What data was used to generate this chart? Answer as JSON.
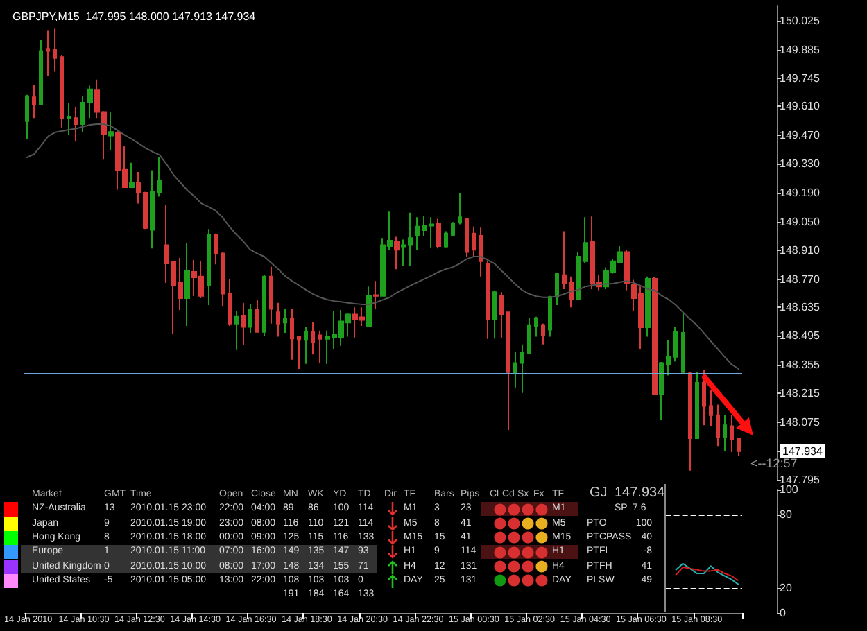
{
  "chart_data": [
    {
      "type": "candlestick",
      "title": "GBPJPY,M15  147.995 148.000 147.913 147.934",
      "categories": [
        null,
        null,
        null,
        null,
        null,
        null,
        null,
        null,
        null,
        null,
        null,
        null,
        null,
        null,
        null,
        null,
        null,
        null,
        null,
        null,
        null,
        null,
        null,
        null,
        null,
        null,
        null,
        null,
        null,
        null,
        null,
        null,
        null,
        null,
        null,
        null,
        null,
        null,
        null,
        null,
        null,
        null,
        null,
        null,
        null,
        null,
        null,
        null,
        null,
        null,
        null,
        null,
        null,
        null,
        null,
        null,
        null,
        null,
        null,
        null,
        null,
        null,
        null,
        null,
        null,
        null,
        null,
        null,
        null,
        null,
        null,
        null,
        null,
        null,
        null,
        null,
        null,
        null,
        null,
        null,
        null,
        null,
        null,
        null,
        null,
        null,
        null,
        null,
        null,
        null,
        null,
        null,
        null,
        null,
        null,
        null,
        null,
        null,
        null,
        null,
        null,
        null,
        null
      ],
      "ohlc": [
        [
          149.538,
          149.666,
          149.452,
          149.659
        ],
        [
          149.654,
          149.715,
          149.553,
          149.621
        ],
        [
          149.621,
          149.935,
          149.621,
          149.879
        ],
        [
          149.89,
          149.98,
          149.756,
          149.879
        ],
        [
          149.884,
          149.987,
          149.778,
          149.845
        ],
        [
          149.85,
          149.861,
          149.508,
          149.553
        ],
        [
          149.553,
          149.628,
          149.47,
          149.558
        ],
        [
          149.553,
          149.605,
          149.441,
          149.524
        ],
        [
          149.524,
          149.659,
          149.486,
          149.628
        ],
        [
          149.632,
          149.711,
          149.553,
          149.693
        ],
        [
          149.688,
          149.74,
          149.553,
          149.583
        ],
        [
          149.583,
          149.587,
          149.351,
          149.475
        ],
        [
          149.468,
          149.58,
          149.396,
          149.486
        ],
        [
          149.482,
          149.497,
          149.205,
          149.3
        ],
        [
          149.302,
          149.419,
          149.217,
          149.217
        ],
        [
          149.217,
          149.336,
          149.217,
          149.239
        ],
        [
          149.239,
          149.291,
          149.138,
          149.19
        ],
        [
          149.19,
          149.194,
          149.014,
          149.019
        ],
        [
          149.01,
          149.3,
          148.92,
          149.194
        ],
        [
          149.19,
          149.363,
          149.172,
          149.25
        ],
        [
          148.936,
          149.131,
          148.752,
          148.846
        ],
        [
          148.853,
          148.857,
          148.505,
          148.74
        ],
        [
          148.752,
          148.873,
          148.621,
          148.678
        ],
        [
          148.678,
          148.947,
          148.543,
          148.812
        ],
        [
          148.806,
          148.864,
          148.689,
          148.779
        ],
        [
          148.783,
          148.857,
          148.678,
          148.689
        ],
        [
          148.74,
          149.014,
          148.644,
          148.987
        ],
        [
          148.987,
          148.992,
          148.842,
          148.895
        ],
        [
          148.895,
          148.902,
          148.639,
          148.7
        ],
        [
          148.7,
          148.772,
          148.543,
          148.554
        ],
        [
          148.554,
          148.617,
          148.426,
          148.588
        ],
        [
          148.594,
          148.655,
          148.449,
          148.538
        ],
        [
          148.538,
          148.648,
          148.509,
          148.621
        ],
        [
          148.621,
          148.671,
          148.514,
          148.514
        ],
        [
          148.514,
          148.79,
          148.493,
          148.783
        ],
        [
          148.783,
          148.83,
          148.554,
          148.626
        ],
        [
          148.61,
          148.655,
          148.491,
          148.554
        ],
        [
          148.559,
          148.626,
          148.509,
          148.577
        ],
        [
          148.577,
          148.626,
          148.379,
          148.482
        ],
        [
          148.491,
          148.491,
          148.334,
          148.475
        ],
        [
          148.475,
          148.538,
          148.359,
          148.516
        ],
        [
          148.514,
          148.561,
          148.404,
          148.464
        ],
        [
          148.498,
          148.52,
          148.363,
          148.48
        ],
        [
          148.48,
          148.52,
          148.359,
          148.491
        ],
        [
          148.487,
          148.617,
          148.431,
          148.502
        ],
        [
          148.487,
          148.621,
          148.446,
          148.565
        ],
        [
          148.559,
          148.606,
          148.491,
          148.599
        ],
        [
          148.599,
          148.633,
          148.487,
          148.577
        ],
        [
          148.585,
          148.633,
          148.543,
          148.572
        ],
        [
          148.543,
          148.734,
          148.543,
          148.689
        ],
        [
          148.693,
          148.761,
          148.626,
          148.689
        ],
        [
          148.689,
          148.97,
          148.689,
          148.936
        ],
        [
          148.931,
          149.098,
          148.913,
          148.958
        ],
        [
          148.952,
          148.976,
          148.819,
          148.913
        ],
        [
          148.929,
          148.963,
          148.835,
          148.936
        ],
        [
          148.936,
          149.093,
          148.835,
          148.97
        ],
        [
          148.981,
          149.071,
          148.913,
          149.026
        ],
        [
          149.008,
          149.077,
          148.981,
          149.032
        ],
        [
          149.03,
          149.071,
          148.925,
          149.037
        ],
        [
          149.041,
          149.064,
          148.92,
          148.931
        ],
        [
          148.929,
          149.003,
          148.925,
          148.992
        ],
        [
          148.985,
          149.048,
          148.981,
          149.041
        ],
        [
          149.044,
          149.187,
          149.037,
          149.071
        ],
        [
          149.064,
          149.066,
          148.88,
          148.902
        ],
        [
          148.992,
          149.026,
          148.88,
          148.913
        ],
        [
          148.981,
          149.021,
          148.783,
          148.857
        ],
        [
          148.846,
          148.857,
          148.48,
          148.577
        ],
        [
          148.577,
          148.716,
          148.482,
          148.707
        ],
        [
          148.689,
          148.707,
          148.487,
          148.599
        ],
        [
          148.61,
          148.61,
          148.038,
          148.318
        ],
        [
          148.312,
          148.415,
          148.244,
          148.363
        ],
        [
          148.363,
          148.453,
          148.217,
          148.415
        ],
        [
          148.408,
          148.581,
          148.408,
          148.547
        ],
        [
          148.543,
          148.588,
          148.491,
          148.581
        ],
        [
          148.547,
          148.554,
          148.453,
          148.498
        ],
        [
          148.525,
          148.689,
          148.491,
          148.684
        ],
        [
          148.684,
          148.801,
          148.644,
          148.797
        ],
        [
          148.79,
          149.003,
          148.722,
          148.752
        ],
        [
          148.752,
          148.783,
          148.633,
          148.671
        ],
        [
          148.671,
          148.902,
          148.671,
          148.88
        ],
        [
          148.857,
          149.071,
          148.846,
          148.947
        ],
        [
          148.954,
          149.075,
          148.722,
          148.752
        ],
        [
          148.752,
          148.79,
          148.716,
          148.734
        ],
        [
          148.734,
          148.828,
          148.722,
          148.812
        ],
        [
          148.806,
          148.868,
          148.797,
          148.857
        ],
        [
          148.85,
          148.931,
          148.846,
          148.902
        ],
        [
          148.902,
          148.913,
          148.716,
          148.752
        ],
        [
          148.745,
          148.767,
          148.617,
          148.678
        ],
        [
          148.7,
          148.734,
          148.431,
          148.536
        ],
        [
          148.536,
          148.783,
          148.491,
          148.772
        ],
        [
          148.772,
          148.779,
          148.206,
          148.21
        ],
        [
          148.21,
          148.368,
          148.087,
          148.363
        ],
        [
          148.356,
          148.475,
          148.302,
          148.392
        ],
        [
          148.392,
          148.536,
          148.37,
          148.514
        ],
        [
          148.318,
          148.61,
          148.307,
          148.509
        ],
        [
          148.312,
          148.318,
          147.84,
          147.997
        ],
        [
          147.997,
          148.318,
          147.997,
          148.267
        ],
        [
          148.267,
          148.329,
          148.06,
          148.154
        ],
        [
          148.154,
          148.233,
          148.056,
          148.109
        ],
        [
          148.109,
          148.161,
          147.959,
          148.004
        ],
        [
          148.004,
          148.109,
          147.936,
          148.06
        ],
        [
          148.056,
          148.109,
          147.93,
          147.993
        ],
        [
          147.995,
          148.0,
          147.913,
          147.934
        ]
      ],
      "series": [
        {
          "type": "line",
          "color": "#555555",
          "values": [
            149.362,
            149.378,
            149.419,
            149.464,
            149.484,
            149.49,
            149.497,
            149.502,
            149.511,
            149.52,
            149.524,
            149.524,
            149.515,
            149.493,
            149.47,
            149.452,
            149.43,
            149.407,
            149.389,
            149.374,
            149.329,
            149.277,
            149.239,
            149.201,
            149.172,
            149.138,
            149.122,
            149.104,
            149.071,
            149.026,
            148.987,
            148.954,
            148.913,
            148.895,
            148.88,
            148.85,
            148.819,
            148.785,
            148.761,
            148.74,
            148.718,
            148.698,
            148.682,
            148.671,
            148.664,
            148.66,
            148.655,
            148.651,
            148.648,
            148.648,
            148.657,
            148.67,
            148.682,
            148.705,
            148.722,
            148.74,
            148.756,
            148.772,
            148.788,
            148.806,
            148.819,
            148.828,
            148.846,
            148.868,
            148.88,
            148.88,
            148.864,
            148.846,
            148.812,
            148.779,
            148.745,
            148.716,
            148.698,
            148.687,
            148.682,
            148.682,
            148.687,
            148.698,
            148.711,
            148.718,
            148.734,
            148.74,
            148.745,
            148.747,
            148.749,
            148.756,
            148.761,
            148.752,
            148.738,
            148.722,
            148.716,
            148.689,
            148.671,
            148.644,
            148.61,
            148.577,
            148.547,
            148.509,
            148.469,
            148.431,
            148.392,
            148.356,
            148.334
          ]
        }
      ],
      "ylim": [
        147.795,
        150.1
      ],
      "yticks": [
        147.795,
        147.934,
        148.075,
        148.215,
        148.355,
        148.495,
        148.635,
        {
          "value": 148.77,
          "label": "148.770"
        },
        {
          "value": 148.91,
          "label": "148.910"
        },
        {
          "value": 149.05,
          "label": "149.050"
        },
        {
          "value": 149.19,
          "label": "149.190"
        },
        {
          "value": 149.33,
          "label": "149.330"
        },
        {
          "value": 149.47,
          "label": "149.470"
        },
        {
          "value": 149.61,
          "label": "149.610"
        },
        149.745,
        149.885,
        150.025
      ],
      "ref_lines": [
        {
          "axis": "y",
          "value": 148.31,
          "color": "#6fa8dc"
        }
      ],
      "annotations": [
        "<--12:57"
      ],
      "tick_labels": "y",
      "marker": "none"
    },
    {
      "type": "line",
      "categories": [
        "14 Jan 2010",
        null,
        null,
        null,
        null,
        null,
        null,
        null,
        "14 Jan 10:30",
        null,
        null,
        null,
        null,
        null,
        null,
        null,
        "14 Jan 12:30",
        null,
        null,
        null,
        null,
        null,
        null,
        null,
        "14 Jan 14:30",
        null,
        null,
        null,
        null,
        null,
        null,
        null,
        "14 Jan 16:30",
        null,
        null,
        null,
        null,
        null,
        null,
        null,
        "14 Jan 18:30",
        null,
        null,
        null,
        null,
        null,
        null,
        null,
        "14 Jan 20:30",
        null,
        null,
        null,
        null,
        null,
        null,
        null,
        "14 Jan 22:30",
        null,
        null,
        null,
        null,
        null,
        null,
        null,
        "15 Jan 00:30",
        null,
        null,
        null,
        null,
        null,
        null,
        null,
        "15 Jan 02:30",
        null,
        null,
        null,
        null,
        null,
        null,
        null,
        "15 Jan 04:30",
        null,
        null,
        null,
        null,
        null,
        null,
        null,
        "15 Jan 06:30",
        null,
        null,
        null,
        null,
        null,
        null,
        null,
        "15 Jan 08:30",
        null,
        null,
        null,
        null,
        null,
        null
      ],
      "series": [
        {
          "color": "#2ab0b0",
          "line_style": "solid",
          "values": [
            null,
            null,
            null,
            null,
            null,
            null,
            null,
            null,
            null,
            null,
            null,
            null,
            null,
            null,
            null,
            null,
            null,
            null,
            null,
            null,
            null,
            null,
            null,
            null,
            null,
            null,
            null,
            null,
            null,
            null,
            null,
            null,
            null,
            null,
            null,
            null,
            null,
            null,
            null,
            null,
            null,
            null,
            null,
            null,
            null,
            null,
            null,
            null,
            null,
            null,
            null,
            null,
            null,
            null,
            null,
            null,
            null,
            null,
            null,
            null,
            null,
            null,
            null,
            null,
            null,
            null,
            null,
            null,
            null,
            null,
            null,
            null,
            null,
            null,
            null,
            null,
            null,
            null,
            null,
            null,
            null,
            null,
            null,
            null,
            null,
            null,
            null,
            null,
            null,
            null,
            null,
            null,
            null,
            35,
            40,
            36,
            32,
            32,
            38,
            33,
            30,
            27,
            23
          ]
        },
        {
          "color": "#e02020",
          "line_style": "dotted",
          "values": [
            null,
            null,
            null,
            null,
            null,
            null,
            null,
            null,
            null,
            null,
            null,
            null,
            null,
            null,
            null,
            null,
            null,
            null,
            null,
            null,
            null,
            null,
            null,
            null,
            null,
            null,
            null,
            null,
            null,
            null,
            null,
            null,
            null,
            null,
            null,
            null,
            null,
            null,
            null,
            null,
            null,
            null,
            null,
            null,
            null,
            null,
            null,
            null,
            null,
            null,
            null,
            null,
            null,
            null,
            null,
            null,
            null,
            null,
            null,
            null,
            null,
            null,
            null,
            null,
            null,
            null,
            null,
            null,
            null,
            null,
            null,
            null,
            null,
            null,
            null,
            null,
            null,
            null,
            null,
            null,
            null,
            null,
            null,
            null,
            null,
            null,
            null,
            null,
            null,
            null,
            null,
            null,
            null,
            31,
            37,
            36,
            35,
            34,
            34,
            35,
            32,
            30,
            26
          ]
        }
      ],
      "ylim": [
        0,
        100
      ],
      "yticks": [
        0,
        20,
        80,
        100
      ],
      "ref_lines": [
        {
          "axis": "y",
          "value": 80,
          "color": "#ffffff",
          "line_style": "dashed"
        },
        {
          "axis": "y",
          "value": 20,
          "color": "#ffffff",
          "line_style": "dashed"
        }
      ],
      "marker": "none"
    },
    {
      "type": "other",
      "colors": [
        "#ff0000",
        "#ffff00",
        "#00ff00",
        "#3399ff",
        "#9933ff",
        "#ff88ff"
      ],
      "annotations": [
        "Market\tGMT\tTime\tOpen\tClose\tMN\tWK\tYD\tTD\tDir\tTF\tBars\tPips\tCl\tCd\tSx\tFx\tTF",
        "NZ-Australia\t13\t2010.01.15 23:00\t22:00\t04:00\t89\t86\t100\t114\t\tM1\t3\t23\t\t\t\t\tM1",
        "Japan\t9\t2010.01.15 19:00\t23:00\t08:00\t116\t110\t121\t114\t\tM5\t8\t41\t\t\t\t\tM5",
        "Hong Kong\t8\t2010.01.15 18:00\t00:00\t09:00\t125\t115\t116\t133\t\tM15\t15\t41\t\t\t\t\tM15",
        "Europe\t1\t2010.01.15 11:00\t07:00\t16:00\t149\t135\t147\t93\t\tH1\t9\t114\t\t\t\t\tH1",
        "United Kingdom\t0\t2010.01.15 10:00\t08:00\t17:00\t148\t134\t155\t71\t\tH4\t12\t131\t\t\t\t\tH4",
        "United States\t-5\t2010.01.15 05:00\t13:00\t22:00\t108\t103\t103\t0\t\tDAY\t25\t131\t\t\t\t\tDAY",
        "\t\t\t\t\t191\t184\t164\t133",
        "GJ\t147.934",
        "SP\t7.6",
        "PTO\t100",
        "PTCPASS\t40",
        "PTFL\t-8",
        "PTFH\t41",
        "PLSW\t49"
      ]
    }
  ]
}
